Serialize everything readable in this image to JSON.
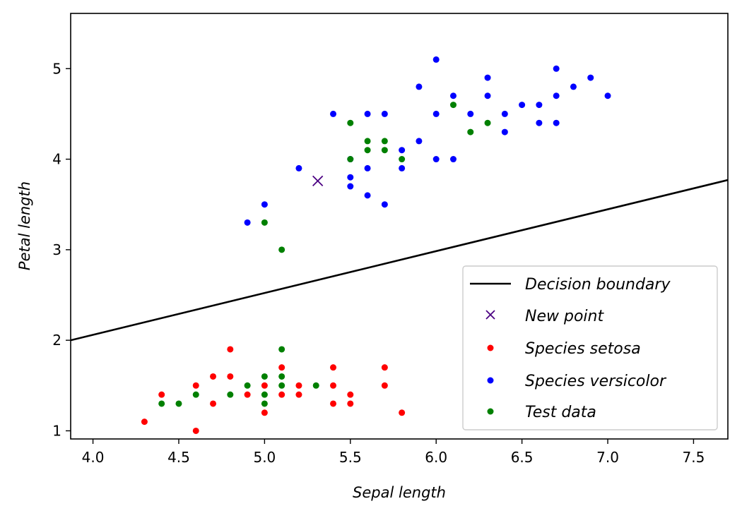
{
  "chart_data": {
    "type": "scatter",
    "xlabel": "Sepal length",
    "ylabel": "Petal length",
    "xlim": [
      3.87,
      7.7
    ],
    "ylim": [
      0.91,
      5.61
    ],
    "xticks": [
      "4.0",
      "4.5",
      "5.0",
      "5.5",
      "6.0",
      "6.5",
      "7.0",
      "7.5"
    ],
    "yticks": [
      "1",
      "2",
      "3",
      "4",
      "5"
    ],
    "grid": false,
    "legend_position": "lower-right",
    "decision_boundary": {
      "name": "Decision boundary",
      "color": "#000000",
      "points": [
        [
          3.87,
          2.0
        ],
        [
          7.7,
          3.77
        ]
      ]
    },
    "new_point": {
      "name": "New point",
      "color": "#4b0082",
      "x": 5.31,
      "y": 3.76
    },
    "series": [
      {
        "name": "Species setosa",
        "color": "#ff0000",
        "points": [
          [
            4.3,
            1.1
          ],
          [
            4.4,
            1.4
          ],
          [
            4.6,
            1.0
          ],
          [
            4.6,
            1.5
          ],
          [
            4.7,
            1.3
          ],
          [
            4.7,
            1.6
          ],
          [
            4.8,
            1.6
          ],
          [
            4.8,
            1.9
          ],
          [
            4.9,
            1.4
          ],
          [
            5.0,
            1.2
          ],
          [
            5.0,
            1.5
          ],
          [
            5.1,
            1.4
          ],
          [
            5.1,
            1.7
          ],
          [
            5.2,
            1.4
          ],
          [
            5.2,
            1.5
          ],
          [
            5.4,
            1.3
          ],
          [
            5.4,
            1.5
          ],
          [
            5.4,
            1.7
          ],
          [
            5.5,
            1.3
          ],
          [
            5.5,
            1.4
          ],
          [
            5.7,
            1.5
          ],
          [
            5.7,
            1.7
          ],
          [
            5.8,
            1.2
          ]
        ]
      },
      {
        "name": "Species versicolor",
        "color": "#0000ff",
        "points": [
          [
            4.9,
            3.3
          ],
          [
            5.0,
            3.5
          ],
          [
            5.2,
            3.9
          ],
          [
            5.4,
            4.5
          ],
          [
            5.5,
            3.7
          ],
          [
            5.5,
            3.8
          ],
          [
            5.5,
            4.0
          ],
          [
            5.6,
            3.6
          ],
          [
            5.6,
            3.9
          ],
          [
            5.6,
            4.5
          ],
          [
            5.7,
            3.5
          ],
          [
            5.7,
            4.5
          ],
          [
            5.8,
            3.9
          ],
          [
            5.8,
            4.1
          ],
          [
            5.9,
            4.2
          ],
          [
            5.9,
            4.8
          ],
          [
            6.0,
            4.0
          ],
          [
            6.0,
            4.5
          ],
          [
            6.0,
            5.1
          ],
          [
            6.1,
            4.0
          ],
          [
            6.1,
            4.7
          ],
          [
            6.2,
            4.5
          ],
          [
            6.3,
            4.7
          ],
          [
            6.3,
            4.9
          ],
          [
            6.4,
            4.3
          ],
          [
            6.4,
            4.5
          ],
          [
            6.5,
            4.6
          ],
          [
            6.6,
            4.4
          ],
          [
            6.6,
            4.6
          ],
          [
            6.7,
            4.4
          ],
          [
            6.7,
            4.7
          ],
          [
            6.7,
            5.0
          ],
          [
            6.8,
            4.8
          ],
          [
            6.9,
            4.9
          ],
          [
            7.0,
            4.7
          ]
        ]
      },
      {
        "name": "Test data",
        "color": "#008000",
        "points": [
          [
            4.4,
            1.3
          ],
          [
            4.5,
            1.3
          ],
          [
            4.6,
            1.4
          ],
          [
            4.8,
            1.4
          ],
          [
            4.9,
            1.5
          ],
          [
            5.0,
            1.3
          ],
          [
            5.0,
            1.4
          ],
          [
            5.0,
            1.6
          ],
          [
            5.1,
            1.5
          ],
          [
            5.1,
            1.6
          ],
          [
            5.1,
            1.9
          ],
          [
            5.3,
            1.5
          ],
          [
            5.0,
            3.3
          ],
          [
            5.1,
            3.0
          ],
          [
            5.5,
            4.0
          ],
          [
            5.5,
            4.4
          ],
          [
            5.6,
            4.1
          ],
          [
            5.6,
            4.2
          ],
          [
            5.7,
            4.1
          ],
          [
            5.7,
            4.2
          ],
          [
            5.8,
            4.0
          ],
          [
            6.1,
            4.6
          ],
          [
            6.2,
            4.3
          ],
          [
            6.3,
            4.4
          ]
        ]
      }
    ]
  }
}
